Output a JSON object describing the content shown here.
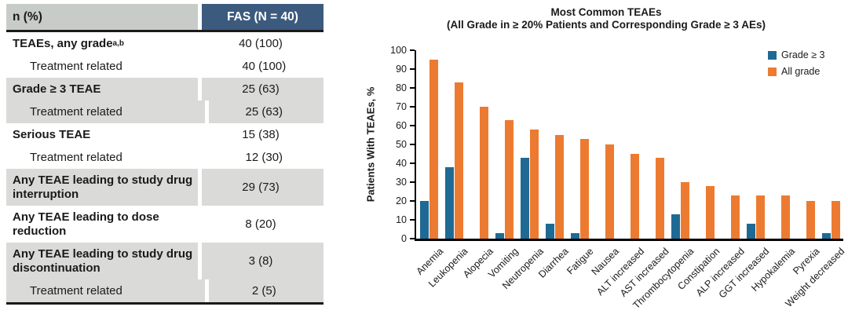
{
  "table": {
    "header": {
      "col1": "n (%)",
      "col2": "FAS (N = 40)"
    },
    "rows": [
      {
        "label": "TEAEs, any grade",
        "sup": "a,b",
        "value": "40 (100)",
        "bold": true,
        "indent": false,
        "shade": "white",
        "tall": false
      },
      {
        "label": "Treatment related",
        "value": "40 (100)",
        "bold": false,
        "indent": true,
        "shade": "white",
        "tall": false
      },
      {
        "label": "Grade ≥ 3 TEAE",
        "value": "25 (63)",
        "bold": true,
        "indent": false,
        "shade": "gray",
        "tall": false
      },
      {
        "label": "Treatment related",
        "value": "25 (63)",
        "bold": false,
        "indent": true,
        "shade": "gray",
        "tall": false
      },
      {
        "label": "Serious TEAE",
        "value": "15 (38)",
        "bold": true,
        "indent": false,
        "shade": "white",
        "tall": false
      },
      {
        "label": "Treatment related",
        "value": "12 (30)",
        "bold": false,
        "indent": true,
        "shade": "white",
        "tall": false
      },
      {
        "label": "Any TEAE leading to study drug interruption",
        "value": "29 (73)",
        "bold": true,
        "indent": false,
        "shade": "gray",
        "tall": true
      },
      {
        "label": "Any TEAE leading to dose reduction",
        "value": "8 (20)",
        "bold": true,
        "indent": false,
        "shade": "white",
        "tall": true
      },
      {
        "label": "Any TEAE leading to study drug discontinuation",
        "value": "3 (8)",
        "bold": true,
        "indent": false,
        "shade": "gray",
        "tall": true
      },
      {
        "label": "Treatment related",
        "value": "2 (5)",
        "bold": false,
        "indent": true,
        "shade": "gray",
        "tall": false
      }
    ]
  },
  "chart_data": {
    "type": "bar",
    "title": "Most Common TEAEs",
    "subtitle": "(All Grade in ≥ 20% Patients and Corresponding Grade ≥ 3 AEs)",
    "ylabel": "Patients With TEAEs, %",
    "ylim": [
      0,
      100
    ],
    "yticks": [
      0,
      10,
      20,
      30,
      40,
      50,
      60,
      70,
      80,
      90,
      100
    ],
    "grid": false,
    "legend_position": "top-right",
    "categories": [
      "Anemia",
      "Leukopenia",
      "Alopecia",
      "Vomiting",
      "Neutropenia",
      "Diarrhea",
      "Fatigue",
      "Nausea",
      "ALT increased",
      "AST increased",
      "Thrombocytopenia",
      "Constipation",
      "ALP increased",
      "GGT increased",
      "Hypokalemia",
      "Pyrexia",
      "Weight decreased"
    ],
    "series": [
      {
        "name": "Grade ≥ 3",
        "color": "#1f6a94",
        "values": [
          20,
          38,
          0,
          3,
          43,
          8,
          3,
          0,
          0,
          0,
          13,
          0,
          0,
          8,
          0,
          0,
          3
        ]
      },
      {
        "name": "All grade",
        "color": "#ec7b31",
        "values": [
          95,
          83,
          70,
          63,
          58,
          55,
          53,
          50,
          45,
          43,
          30,
          28,
          23,
          23,
          23,
          20,
          20
        ]
      }
    ]
  }
}
